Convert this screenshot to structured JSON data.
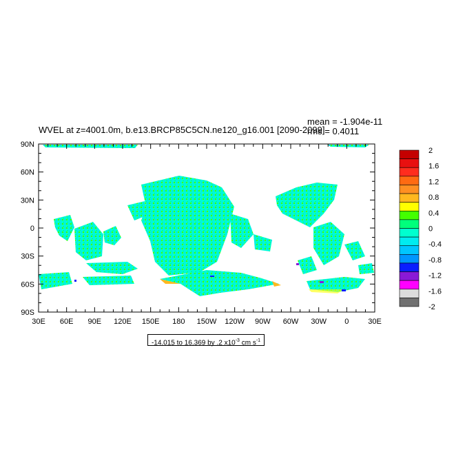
{
  "title": "WVEL at z=4001.0m, b.e13.BRCP85C5CN.ne120_g16.001 [2090-2099]",
  "stats": {
    "mean": "mean = -1.904e-11",
    "rms": "rms = 0.4011"
  },
  "range_label": {
    "prefix": "-14.015 to 16.369 by .2 x10",
    "exponent": "-3",
    "units": " cm s",
    "units_exp": "-1"
  },
  "lat_labels": [
    "90N",
    "60N",
    "30N",
    "0",
    "30S",
    "60S",
    "90S"
  ],
  "lon_labels": [
    "30E",
    "60E",
    "90E",
    "120E",
    "150E",
    "180",
    "150W",
    "120W",
    "90W",
    "60W",
    "30W",
    "0",
    "30E"
  ],
  "colorbar": {
    "labels": [
      "2",
      "1.6",
      "1.2",
      "0.8",
      "0.4",
      "0",
      "-0.4",
      "-0.8",
      "-1.2",
      "-1.6",
      "-2"
    ],
    "colors": [
      "#c40000",
      "#e81010",
      "#ff2d1e",
      "#ff6a12",
      "#ff8f22",
      "#ffb81f",
      "#ffff00",
      "#43ff00",
      "#00ff7c",
      "#00ffcf",
      "#00ecf0",
      "#00c6ff",
      "#0096ff",
      "#0a1eff",
      "#8a19d6",
      "#ff00ff",
      "#dcdcdc",
      "#707070"
    ]
  },
  "map": {
    "projection": "cylindrical-equidistant",
    "lon_range": [
      30,
      390
    ],
    "lat_range": [
      -90,
      90
    ],
    "background": "#ffffff",
    "field": "ocean vertical velocity (WVEL) at 4001 m depth"
  }
}
